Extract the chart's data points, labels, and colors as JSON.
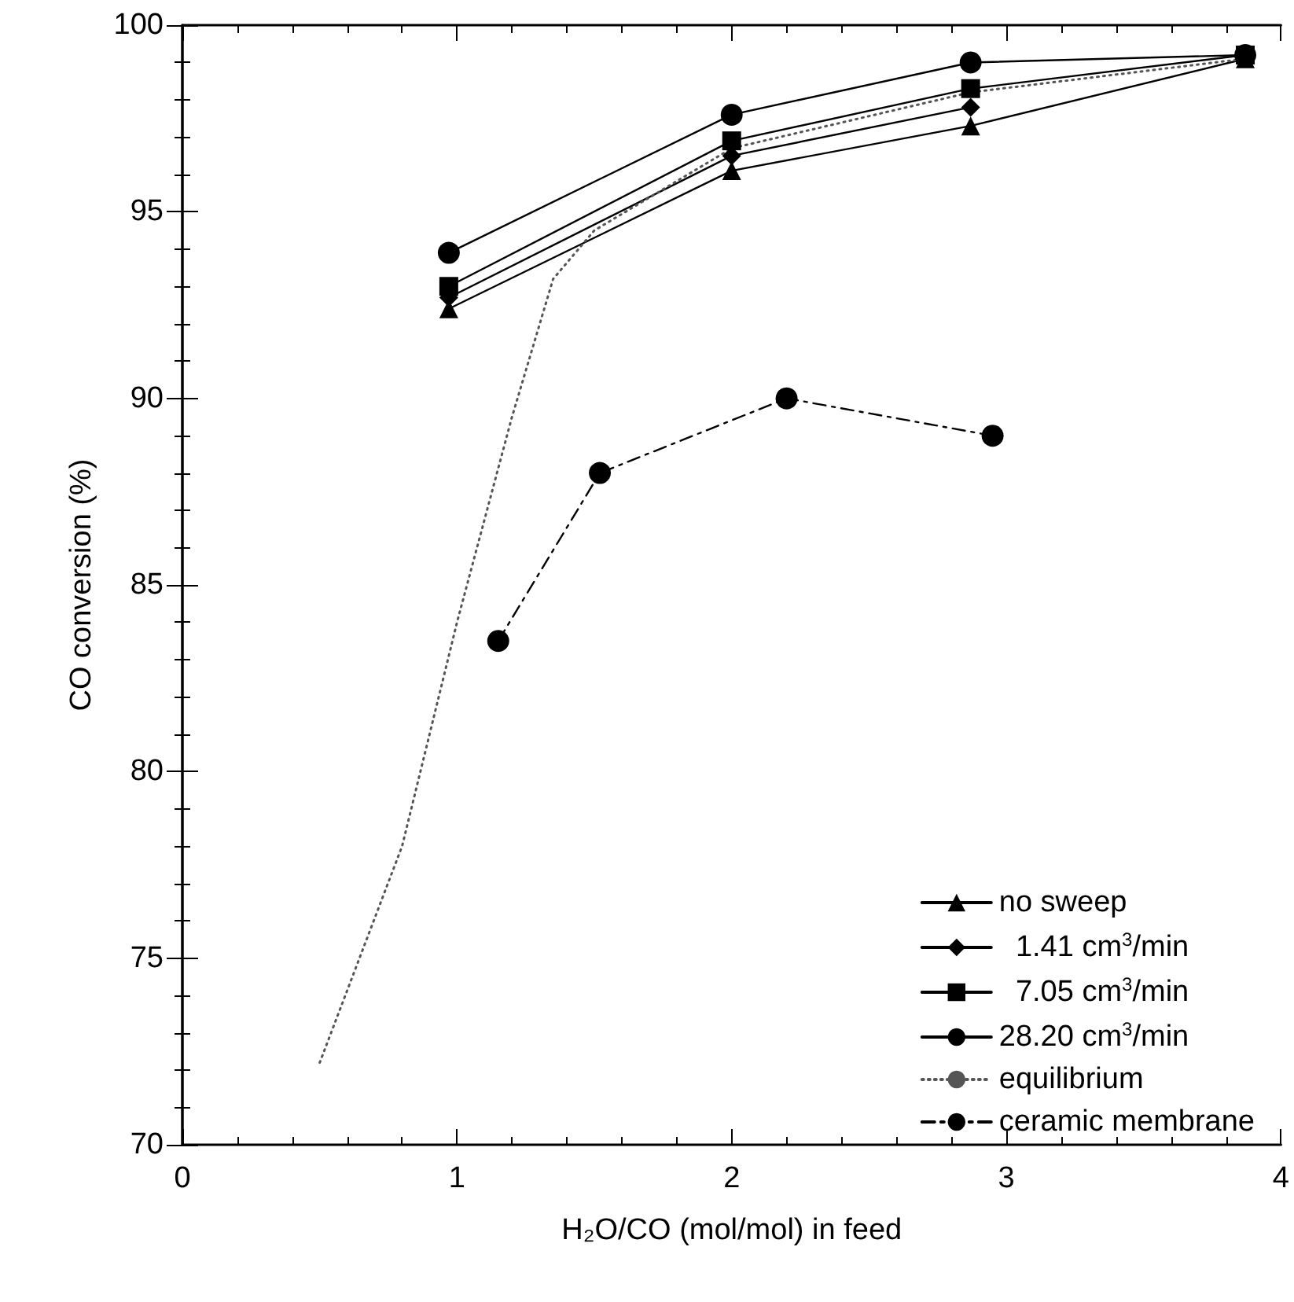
{
  "chart_data": {
    "type": "line",
    "xlabel": "H₂O/CO (mol/mol) in feed",
    "ylabel": "CO conversion (%)",
    "xlim": [
      0,
      4
    ],
    "xticks": [
      0,
      1,
      2,
      3,
      4
    ],
    "ylim": [
      70,
      100
    ],
    "yticks": [
      70,
      75,
      80,
      85,
      90,
      95,
      100
    ],
    "grid": false,
    "legend": "bottom right",
    "line_style": "solid",
    "series": [
      {
        "name": "no sweep",
        "color": "#000000",
        "marker": "triangle",
        "x": [
          0.97,
          2.0,
          2.87,
          3.87
        ],
        "values": [
          92.4,
          96.1,
          97.3,
          99.1
        ]
      },
      {
        "name": "  1.41 cm$^{3}$/min",
        "color": "#000000",
        "marker": "diamond",
        "x": [
          0.97,
          2.0,
          2.87
        ],
        "values": [
          92.7,
          96.5,
          97.8
        ]
      },
      {
        "name": "  7.05 cm$^{3}$/min",
        "color": "#000000",
        "marker": "square",
        "x": [
          0.97,
          2.0,
          2.87,
          3.87
        ],
        "values": [
          93.0,
          96.9,
          98.3,
          99.2
        ]
      },
      {
        "name": "28.20 cm$^{3}$/min",
        "color": "#000000",
        "marker": "circle",
        "x": [
          0.97,
          2.0,
          2.87,
          3.87
        ],
        "values": [
          93.9,
          97.6,
          99.0,
          99.2
        ]
      },
      {
        "name": "equilibrium",
        "color": "#555555",
        "marker": "none",
        "line_style": "dotted",
        "x": [
          0.5,
          0.8,
          1.0,
          1.2,
          1.35,
          1.5,
          2.0,
          2.87,
          3.87
        ],
        "values": [
          72.2,
          78.0,
          84.0,
          89.5,
          93.2,
          94.5,
          96.7,
          98.2,
          99.1
        ]
      },
      {
        "name": "ceramic membrane",
        "color": "#000000",
        "marker": "circle",
        "line_style": "dashed",
        "x": [
          1.15,
          1.52,
          2.2,
          2.95
        ],
        "values": [
          83.5,
          88.0,
          90.0,
          89.0
        ]
      }
    ]
  }
}
